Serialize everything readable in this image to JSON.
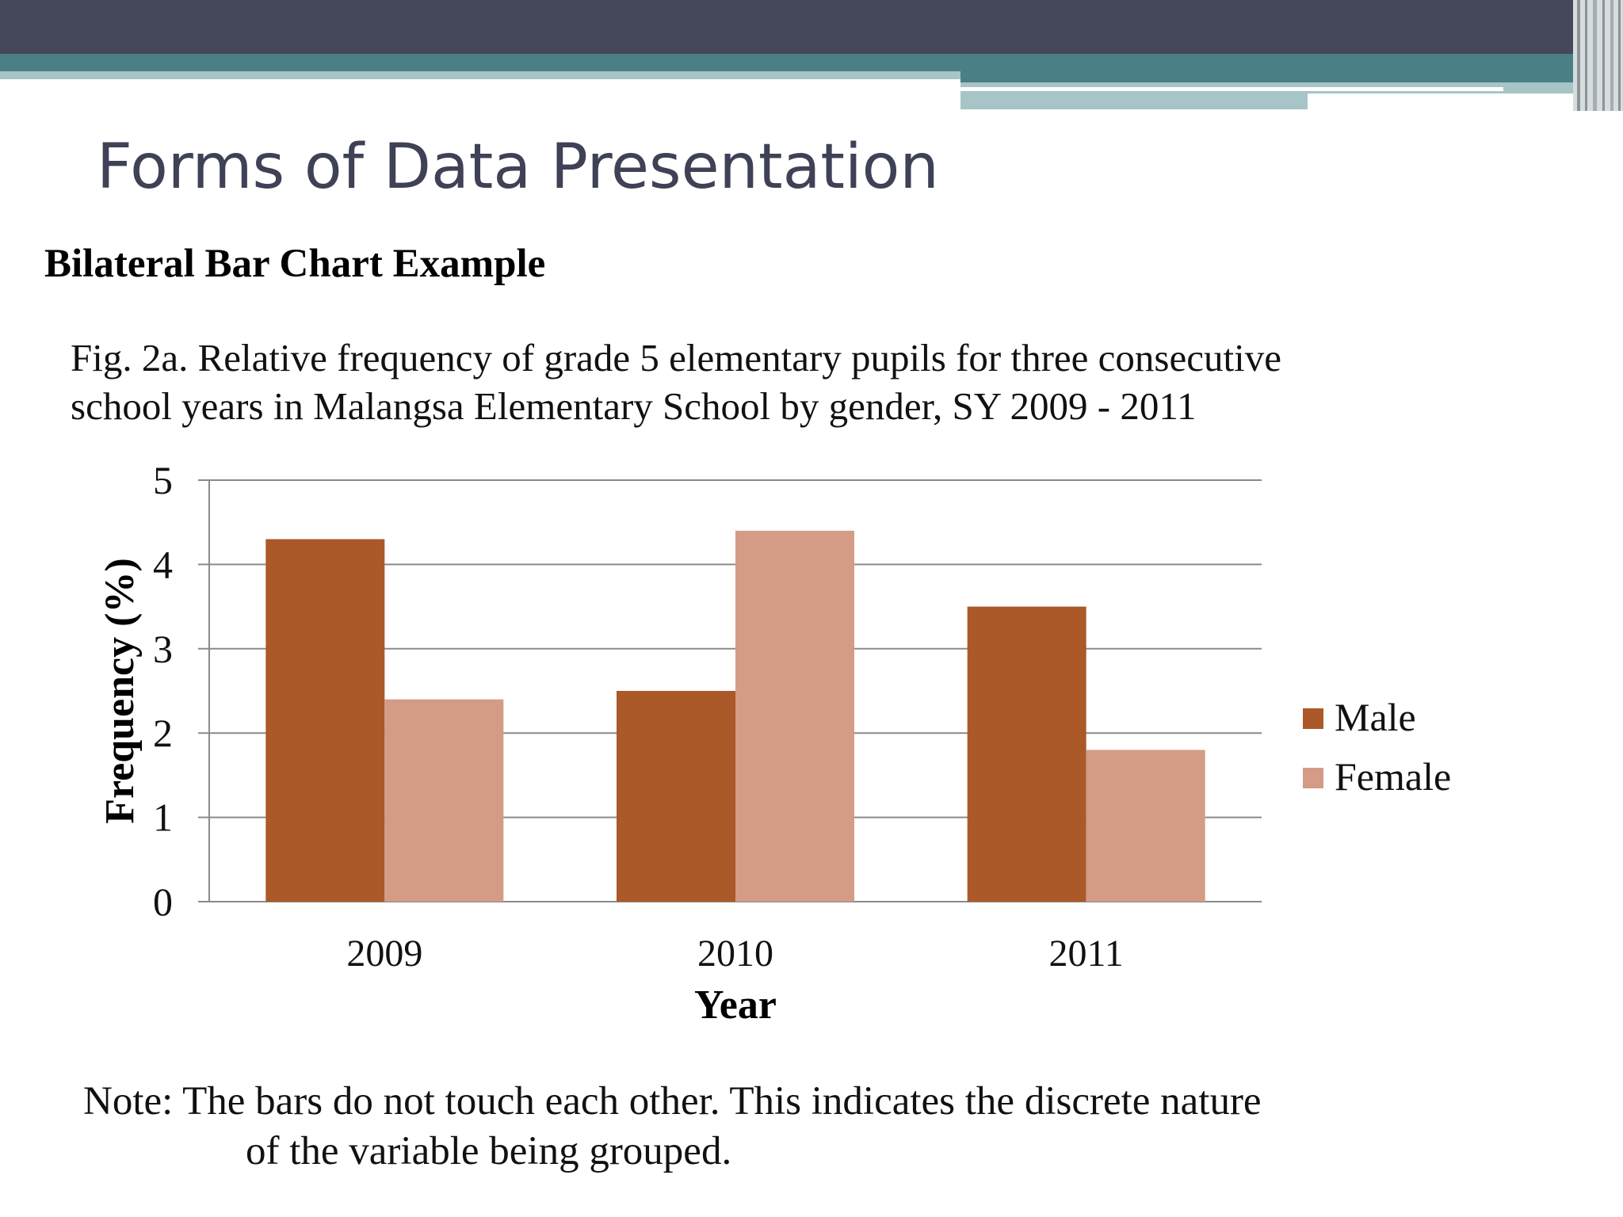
{
  "slide": {
    "title": "Forms of Data Presentation",
    "subtitle": "Bilateral Bar Chart Example",
    "caption_line1": "Fig. 2a. Relative frequency of grade 5 elementary pupils for three consecutive",
    "caption_line2": "school years in Malangsa Elementary School by gender, SY 2009 - 2011",
    "note_line1": "Note: The bars do not touch each other. This indicates the discrete nature",
    "note_line2": "of the variable being grouped."
  },
  "colors": {
    "header_dark": "#45475a",
    "header_teal": "#4a7f86",
    "header_light": "#a7c4c6",
    "title_text": "#3f4156",
    "male": "#ab5928",
    "female": "#d49c87",
    "grid": "#8a8a8a"
  },
  "chart_data": {
    "type": "bar",
    "categories": [
      "2009",
      "2010",
      "2011"
    ],
    "series": [
      {
        "name": "Male",
        "values": [
          4.3,
          2.5,
          3.5
        ],
        "color": "#ab5928"
      },
      {
        "name": "Female",
        "values": [
          2.4,
          4.4,
          1.8
        ],
        "color": "#d49c87"
      }
    ],
    "title": "",
    "xlabel": "Year",
    "ylabel": "Frequency (%)",
    "ylim": [
      0,
      5
    ],
    "yticks": [
      "0",
      "1",
      "2",
      "3",
      "4",
      "5"
    ],
    "grid": true,
    "legend_position": "right"
  }
}
